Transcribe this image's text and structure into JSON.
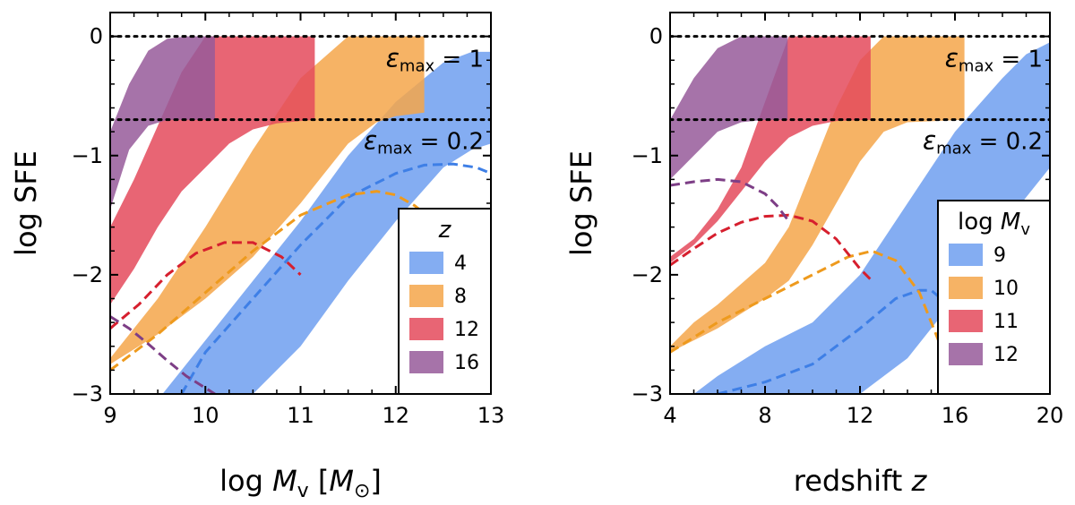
{
  "colors": {
    "blue": "#6f9ff0",
    "orange": "#f5a64a",
    "red": "#e44a5c",
    "purple": "#965a9a",
    "blue_line": "#3e7fe6",
    "orange_line": "#ee9a1d",
    "red_line": "#d61f2e",
    "purple_line": "#7d3e86"
  },
  "chart_data": [
    {
      "type": "area",
      "name": "left-panel",
      "xlabel": "log M_v [M_sun]",
      "xlabel_parts": {
        "pre": "log ",
        "var": "M",
        "sub": "v",
        "bracket_open": " [",
        "unit": "M",
        "unit_sub": "⊙",
        "bracket_close": "]"
      },
      "ylabel": "log SFE",
      "xlim": [
        9,
        13
      ],
      "ylim": [
        -3,
        0.2
      ],
      "xticks": [
        9,
        10,
        11,
        12,
        13
      ],
      "xtick_labels": [
        "9",
        "10",
        "11",
        "12",
        "13"
      ],
      "yticks": [
        -3,
        -2,
        -1,
        0
      ],
      "ytick_labels": [
        "−3",
        "−2",
        "−1",
        "0"
      ],
      "hlines": [
        {
          "y": 0,
          "label": "εmax = 1",
          "sym": "ε",
          "sub": "max",
          "rest": " = 1"
        },
        {
          "y": -0.699,
          "label": "εmax = 0.2",
          "sym": "ε",
          "sub": "max",
          "rest": " = 0.2"
        }
      ],
      "legend": {
        "title": "z",
        "position": "lower-right",
        "entries": [
          "4",
          "8",
          "12",
          "16"
        ]
      },
      "bands": [
        {
          "label": "4",
          "color_key": "blue",
          "x": [
            9.55,
            10.0,
            10.5,
            11.0,
            11.5,
            12.0,
            12.5,
            12.8,
            13.0
          ],
          "upper": [
            -3.0,
            -2.55,
            -2.05,
            -1.55,
            -1.0,
            -0.55,
            -0.22,
            -0.13,
            -0.13
          ],
          "lower": [
            -3.0,
            -3.0,
            -3.0,
            -2.6,
            -2.05,
            -1.55,
            -1.1,
            -0.95,
            -0.9
          ]
        },
        {
          "label": "8",
          "color_key": "orange",
          "x": [
            9.0,
            9.5,
            10.0,
            10.5,
            11.0,
            11.5,
            11.8,
            12.0,
            12.3
          ],
          "upper": [
            -2.7,
            -2.2,
            -1.6,
            -0.95,
            -0.35,
            0.0,
            0.0,
            0.0,
            0.0
          ],
          "lower": [
            -2.75,
            -2.5,
            -2.2,
            -1.85,
            -1.4,
            -0.9,
            -0.72,
            -0.67,
            -0.64
          ]
        },
        {
          "label": "12",
          "color_key": "red",
          "x": [
            9.0,
            9.25,
            9.5,
            9.75,
            10.0,
            10.25,
            10.5,
            10.75,
            11.0,
            11.15
          ],
          "upper": [
            -1.6,
            -1.2,
            -0.75,
            -0.3,
            0.0,
            0.0,
            0.0,
            0.0,
            0.0,
            0.0
          ],
          "lower": [
            -2.25,
            -1.95,
            -1.6,
            -1.3,
            -1.1,
            -0.9,
            -0.78,
            -0.73,
            -0.71,
            -0.7
          ]
        },
        {
          "label": "16",
          "color_key": "purple",
          "x": [
            9.0,
            9.2,
            9.4,
            9.6,
            9.8,
            10.1
          ],
          "upper": [
            -0.8,
            -0.4,
            -0.12,
            -0.02,
            0.0,
            0.0
          ],
          "lower": [
            -1.45,
            -0.95,
            -0.75,
            -0.7,
            -0.7,
            -0.7
          ]
        }
      ],
      "dashed": [
        {
          "label": "4",
          "color_key": "blue_line",
          "x": [
            9.75,
            10.0,
            10.5,
            11.0,
            11.5,
            12.0,
            12.3,
            12.6,
            12.85,
            13.0
          ],
          "y": [
            -3.0,
            -2.65,
            -2.2,
            -1.75,
            -1.35,
            -1.15,
            -1.08,
            -1.07,
            -1.1,
            -1.15
          ]
        },
        {
          "label": "8",
          "color_key": "orange_line",
          "x": [
            9.0,
            9.5,
            10.0,
            10.5,
            11.0,
            11.5,
            11.8,
            12.0,
            12.2,
            12.4
          ],
          "y": [
            -2.8,
            -2.5,
            -2.15,
            -1.8,
            -1.5,
            -1.33,
            -1.3,
            -1.33,
            -1.42,
            -1.55
          ]
        },
        {
          "label": "12",
          "color_key": "red_line",
          "x": [
            9.0,
            9.3,
            9.6,
            9.9,
            10.2,
            10.5,
            10.8,
            11.0
          ],
          "y": [
            -2.45,
            -2.25,
            -2.0,
            -1.82,
            -1.73,
            -1.73,
            -1.85,
            -2.0
          ]
        },
        {
          "label": "16",
          "color_key": "purple_line",
          "x": [
            9.0,
            9.2,
            9.4,
            9.6,
            9.8,
            10.1
          ],
          "y": [
            -2.35,
            -2.45,
            -2.58,
            -2.72,
            -2.85,
            -3.0
          ]
        }
      ]
    },
    {
      "type": "area",
      "name": "right-panel",
      "xlabel": "redshift z",
      "xlabel_parts": {
        "pre": "redshift ",
        "var": "z"
      },
      "ylabel": "log SFE",
      "xlim": [
        4,
        20
      ],
      "ylim": [
        -3,
        0.2
      ],
      "xticks": [
        4,
        8,
        12,
        16,
        20
      ],
      "xtick_labels": [
        "4",
        "8",
        "12",
        "16",
        "20"
      ],
      "yticks": [
        -3,
        -2,
        -1,
        0
      ],
      "ytick_labels": [
        "−3",
        "−2",
        "−1",
        "0"
      ],
      "hlines": [
        {
          "y": 0,
          "label": "εmax = 1",
          "sym": "ε",
          "sub": "max",
          "rest": " = 1"
        },
        {
          "y": -0.699,
          "label": "εmax = 0.2",
          "sym": "ε",
          "sub": "max",
          "rest": " = 0.2"
        }
      ],
      "legend": {
        "title": "log Mv",
        "title_parts": {
          "pre": "log ",
          "var": "M",
          "sub": "v"
        },
        "position": "lower-right",
        "entries": [
          "9",
          "10",
          "11",
          "12"
        ]
      },
      "bands": [
        {
          "label": "9",
          "color_key": "blue",
          "x": [
            5.0,
            6.0,
            8.0,
            10.0,
            12.0,
            14.0,
            16.0,
            18.0,
            19.0,
            20.0
          ],
          "upper": [
            -3.0,
            -2.85,
            -2.6,
            -2.4,
            -2.0,
            -1.4,
            -0.8,
            -0.35,
            -0.15,
            -0.05
          ],
          "lower": [
            -3.0,
            -3.0,
            -3.0,
            -3.0,
            -3.0,
            -2.7,
            -2.2,
            -1.6,
            -1.35,
            -1.1
          ]
        },
        {
          "label": "10",
          "color_key": "orange",
          "x": [
            4.0,
            5.0,
            6.0,
            8.0,
            9.0,
            10.0,
            11.0,
            12.0,
            13.0,
            14.0,
            16.4
          ],
          "upper": [
            -2.6,
            -2.4,
            -2.25,
            -1.9,
            -1.6,
            -1.1,
            -0.6,
            -0.2,
            0.0,
            0.0,
            0.0
          ],
          "lower": [
            -2.65,
            -2.55,
            -2.45,
            -2.2,
            -2.05,
            -1.75,
            -1.4,
            -1.05,
            -0.8,
            -0.72,
            -0.7
          ]
        },
        {
          "label": "11",
          "color_key": "red",
          "x": [
            4.0,
            5.0,
            6.0,
            7.0,
            8.0,
            9.0,
            10.0,
            11.0,
            12.45
          ],
          "upper": [
            -1.85,
            -1.7,
            -1.45,
            -1.1,
            -0.55,
            0.0,
            0.0,
            0.0,
            0.0
          ],
          "lower": [
            -1.9,
            -1.75,
            -1.55,
            -1.3,
            -1.05,
            -0.85,
            -0.75,
            -0.71,
            -0.7
          ]
        },
        {
          "label": "12",
          "color_key": "purple",
          "x": [
            4.0,
            5.0,
            6.0,
            7.0,
            8.0,
            8.95
          ],
          "upper": [
            -0.7,
            -0.35,
            -0.1,
            0.0,
            0.0,
            0.0
          ],
          "lower": [
            -1.2,
            -1.0,
            -0.8,
            -0.72,
            -0.7,
            -0.7
          ]
        }
      ],
      "dashed": [
        {
          "label": "9",
          "color_key": "blue_line",
          "x": [
            6.0,
            8.0,
            10.0,
            12.0,
            13.5,
            14.5,
            15.0,
            16.0,
            17.0,
            17.6
          ],
          "y": [
            -3.0,
            -2.9,
            -2.75,
            -2.45,
            -2.2,
            -2.13,
            -2.13,
            -2.3,
            -2.75,
            -3.0
          ]
        },
        {
          "label": "10",
          "color_key": "orange_line",
          "x": [
            4.0,
            6.0,
            8.0,
            10.0,
            11.5,
            12.5,
            13.5,
            14.5,
            15.5,
            16.2
          ],
          "y": [
            -2.65,
            -2.4,
            -2.2,
            -2.0,
            -1.85,
            -1.8,
            -1.88,
            -2.15,
            -2.65,
            -3.0
          ]
        },
        {
          "label": "11",
          "color_key": "red_line",
          "x": [
            4.0,
            5.0,
            6.0,
            7.0,
            8.0,
            9.0,
            10.0,
            11.0,
            12.0,
            12.5
          ],
          "y": [
            -1.92,
            -1.78,
            -1.65,
            -1.56,
            -1.51,
            -1.5,
            -1.55,
            -1.7,
            -1.95,
            -2.05
          ]
        },
        {
          "label": "12",
          "color_key": "purple_line",
          "x": [
            4.0,
            5.0,
            6.0,
            7.0,
            8.0,
            8.5,
            9.0
          ],
          "y": [
            -1.25,
            -1.22,
            -1.2,
            -1.22,
            -1.32,
            -1.42,
            -1.55
          ]
        }
      ]
    }
  ]
}
